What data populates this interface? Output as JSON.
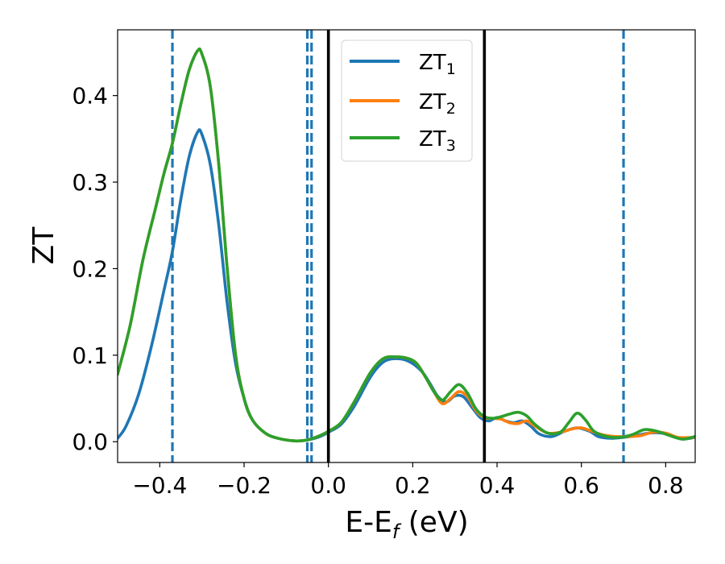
{
  "chart_data": {
    "type": "line",
    "xlabel_main": "E-E",
    "xlabel_sub": "f",
    "xlabel_unit": " (eV)",
    "ylabel": "ZT",
    "xlim": [
      -0.5,
      0.87
    ],
    "ylim": [
      -0.024,
      0.476
    ],
    "x_ticks": [
      -0.4,
      -0.2,
      0.0,
      0.2,
      0.4,
      0.6,
      0.8
    ],
    "x_tick_labels": [
      "−0.4",
      "−0.2",
      "0.0",
      "0.2",
      "0.4",
      "0.6",
      "0.8"
    ],
    "y_ticks": [
      0.0,
      0.1,
      0.2,
      0.3,
      0.4
    ],
    "y_tick_labels": [
      "0.0",
      "0.1",
      "0.2",
      "0.3",
      "0.4"
    ],
    "legend_position": "top-center",
    "series": [
      {
        "name": "ZT",
        "name_sub": "1",
        "color": "#1f77b4",
        "points": [
          [
            -0.5,
            0.004
          ],
          [
            -0.48,
            0.018
          ],
          [
            -0.45,
            0.055
          ],
          [
            -0.42,
            0.11
          ],
          [
            -0.39,
            0.175
          ],
          [
            -0.37,
            0.22
          ],
          [
            -0.35,
            0.28
          ],
          [
            -0.33,
            0.33
          ],
          [
            -0.31,
            0.358
          ],
          [
            -0.3,
            0.355
          ],
          [
            -0.28,
            0.32
          ],
          [
            -0.26,
            0.25
          ],
          [
            -0.24,
            0.16
          ],
          [
            -0.22,
            0.09
          ],
          [
            -0.2,
            0.05
          ],
          [
            -0.18,
            0.025
          ],
          [
            -0.15,
            0.01
          ],
          [
            -0.12,
            0.004
          ],
          [
            -0.08,
            0.001
          ],
          [
            -0.05,
            0.002
          ],
          [
            -0.02,
            0.006
          ],
          [
            0.0,
            0.011
          ],
          [
            0.03,
            0.02
          ],
          [
            0.06,
            0.04
          ],
          [
            0.1,
            0.075
          ],
          [
            0.13,
            0.092
          ],
          [
            0.16,
            0.096
          ],
          [
            0.19,
            0.093
          ],
          [
            0.22,
            0.082
          ],
          [
            0.24,
            0.068
          ],
          [
            0.26,
            0.052
          ],
          [
            0.28,
            0.046
          ],
          [
            0.3,
            0.053
          ],
          [
            0.32,
            0.052
          ],
          [
            0.34,
            0.04
          ],
          [
            0.36,
            0.028
          ],
          [
            0.38,
            0.024
          ],
          [
            0.4,
            0.028
          ],
          [
            0.42,
            0.024
          ],
          [
            0.44,
            0.022
          ],
          [
            0.46,
            0.024
          ],
          [
            0.48,
            0.018
          ],
          [
            0.5,
            0.009
          ],
          [
            0.53,
            0.006
          ],
          [
            0.56,
            0.012
          ],
          [
            0.59,
            0.016
          ],
          [
            0.62,
            0.012
          ],
          [
            0.64,
            0.006
          ],
          [
            0.67,
            0.004
          ],
          [
            0.7,
            0.005
          ],
          [
            0.73,
            0.007
          ],
          [
            0.76,
            0.01
          ],
          [
            0.79,
            0.01
          ],
          [
            0.82,
            0.006
          ],
          [
            0.84,
            0.003
          ],
          [
            0.87,
            0.005
          ]
        ]
      },
      {
        "name": "ZT",
        "name_sub": "2",
        "color": "#ff7f0e",
        "points": [
          [
            -0.5,
            0.078
          ],
          [
            -0.47,
            0.135
          ],
          [
            -0.44,
            0.21
          ],
          [
            -0.41,
            0.27
          ],
          [
            -0.39,
            0.31
          ],
          [
            -0.37,
            0.345
          ],
          [
            -0.35,
            0.39
          ],
          [
            -0.33,
            0.43
          ],
          [
            -0.31,
            0.452
          ],
          [
            -0.3,
            0.448
          ],
          [
            -0.28,
            0.41
          ],
          [
            -0.26,
            0.32
          ],
          [
            -0.24,
            0.2
          ],
          [
            -0.22,
            0.1
          ],
          [
            -0.2,
            0.05
          ],
          [
            -0.18,
            0.025
          ],
          [
            -0.15,
            0.01
          ],
          [
            -0.12,
            0.004
          ],
          [
            -0.08,
            0.001
          ],
          [
            -0.05,
            0.002
          ],
          [
            -0.02,
            0.007
          ],
          [
            0.0,
            0.012
          ],
          [
            0.03,
            0.022
          ],
          [
            0.06,
            0.045
          ],
          [
            0.1,
            0.08
          ],
          [
            0.13,
            0.096
          ],
          [
            0.16,
            0.098
          ],
          [
            0.19,
            0.096
          ],
          [
            0.21,
            0.09
          ],
          [
            0.23,
            0.075
          ],
          [
            0.25,
            0.058
          ],
          [
            0.27,
            0.044
          ],
          [
            0.29,
            0.05
          ],
          [
            0.31,
            0.058
          ],
          [
            0.33,
            0.052
          ],
          [
            0.35,
            0.036
          ],
          [
            0.37,
            0.028
          ],
          [
            0.39,
            0.027
          ],
          [
            0.41,
            0.026
          ],
          [
            0.43,
            0.022
          ],
          [
            0.45,
            0.021
          ],
          [
            0.47,
            0.024
          ],
          [
            0.49,
            0.018
          ],
          [
            0.52,
            0.01
          ],
          [
            0.55,
            0.011
          ],
          [
            0.58,
            0.015
          ],
          [
            0.6,
            0.016
          ],
          [
            0.62,
            0.013
          ],
          [
            0.65,
            0.008
          ],
          [
            0.68,
            0.006
          ],
          [
            0.71,
            0.006
          ],
          [
            0.74,
            0.007
          ],
          [
            0.77,
            0.011
          ],
          [
            0.8,
            0.01
          ],
          [
            0.83,
            0.005
          ],
          [
            0.87,
            0.005
          ]
        ]
      },
      {
        "name": "ZT",
        "name_sub": "3",
        "color": "#2ca02c",
        "points": [
          [
            -0.5,
            0.078
          ],
          [
            -0.47,
            0.135
          ],
          [
            -0.44,
            0.21
          ],
          [
            -0.41,
            0.27
          ],
          [
            -0.39,
            0.31
          ],
          [
            -0.37,
            0.345
          ],
          [
            -0.35,
            0.39
          ],
          [
            -0.33,
            0.43
          ],
          [
            -0.31,
            0.452
          ],
          [
            -0.3,
            0.448
          ],
          [
            -0.28,
            0.41
          ],
          [
            -0.26,
            0.32
          ],
          [
            -0.24,
            0.2
          ],
          [
            -0.22,
            0.1
          ],
          [
            -0.2,
            0.05
          ],
          [
            -0.18,
            0.025
          ],
          [
            -0.15,
            0.01
          ],
          [
            -0.12,
            0.004
          ],
          [
            -0.08,
            0.001
          ],
          [
            -0.05,
            0.002
          ],
          [
            -0.02,
            0.007
          ],
          [
            0.0,
            0.012
          ],
          [
            0.03,
            0.022
          ],
          [
            0.06,
            0.045
          ],
          [
            0.1,
            0.08
          ],
          [
            0.13,
            0.096
          ],
          [
            0.16,
            0.098
          ],
          [
            0.19,
            0.096
          ],
          [
            0.21,
            0.09
          ],
          [
            0.23,
            0.075
          ],
          [
            0.25,
            0.058
          ],
          [
            0.27,
            0.048
          ],
          [
            0.29,
            0.058
          ],
          [
            0.31,
            0.066
          ],
          [
            0.33,
            0.056
          ],
          [
            0.35,
            0.038
          ],
          [
            0.37,
            0.029
          ],
          [
            0.39,
            0.027
          ],
          [
            0.41,
            0.029
          ],
          [
            0.43,
            0.032
          ],
          [
            0.45,
            0.034
          ],
          [
            0.47,
            0.03
          ],
          [
            0.49,
            0.02
          ],
          [
            0.52,
            0.01
          ],
          [
            0.55,
            0.011
          ],
          [
            0.57,
            0.022
          ],
          [
            0.59,
            0.033
          ],
          [
            0.61,
            0.025
          ],
          [
            0.63,
            0.012
          ],
          [
            0.66,
            0.006
          ],
          [
            0.69,
            0.005
          ],
          [
            0.72,
            0.008
          ],
          [
            0.75,
            0.014
          ],
          [
            0.78,
            0.012
          ],
          [
            0.81,
            0.007
          ],
          [
            0.84,
            0.003
          ],
          [
            0.87,
            0.006
          ]
        ]
      }
    ],
    "vlines_dashed": {
      "x": [
        -0.37,
        -0.05,
        -0.04,
        0.7
      ],
      "color": "#1f77b4"
    },
    "vlines_solid": {
      "x": [
        0.0,
        0.37
      ],
      "color": "#000000"
    }
  }
}
